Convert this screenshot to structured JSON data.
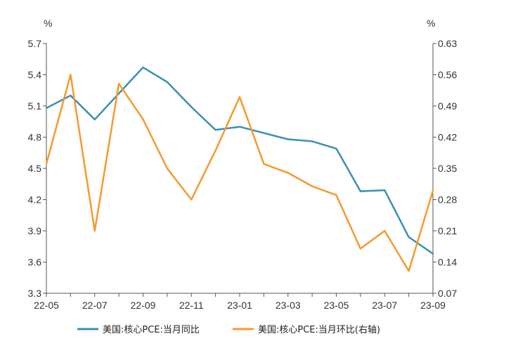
{
  "chart_data": {
    "type": "line",
    "categories": [
      "22-05",
      "22-06",
      "22-07",
      "22-08",
      "22-09",
      "22-10",
      "22-11",
      "22-12",
      "23-01",
      "23-02",
      "23-03",
      "23-04",
      "23-05",
      "23-06",
      "23-07",
      "23-08",
      "23-09"
    ],
    "x_tick_labels": [
      "22-05",
      "22-07",
      "22-09",
      "22-11",
      "23-01",
      "23-03",
      "23-05",
      "23-07",
      "23-09"
    ],
    "left_axis": {
      "unit": "%",
      "ylim": [
        3.3,
        5.7
      ],
      "ticks": [
        "3.3",
        "3.6",
        "3.9",
        "4.2",
        "4.5",
        "4.8",
        "5.1",
        "5.4",
        "5.7"
      ]
    },
    "right_axis": {
      "unit": "%",
      "ylim": [
        0.07,
        0.63
      ],
      "ticks": [
        "0.07",
        "0.14",
        "0.21",
        "0.28",
        "0.35",
        "0.42",
        "0.49",
        "0.56",
        "0.63"
      ]
    },
    "series": [
      {
        "name": "美国:核心PCE:当月同比",
        "axis": "left",
        "color": "#3a8fb7",
        "values": [
          5.08,
          5.2,
          4.97,
          5.22,
          5.47,
          5.33,
          5.09,
          4.87,
          4.9,
          4.84,
          4.78,
          4.76,
          4.69,
          4.28,
          4.29,
          3.84,
          3.68
        ]
      },
      {
        "name": "美国:核心PCE:当月环比(右轴)",
        "axis": "right",
        "color": "#f59a2e",
        "values": [
          0.36,
          0.56,
          0.21,
          0.54,
          0.46,
          0.35,
          0.28,
          0.39,
          0.51,
          0.36,
          0.34,
          0.31,
          0.29,
          0.17,
          0.21,
          0.12,
          0.3
        ]
      }
    ],
    "grid": false,
    "legend_position": "bottom"
  }
}
